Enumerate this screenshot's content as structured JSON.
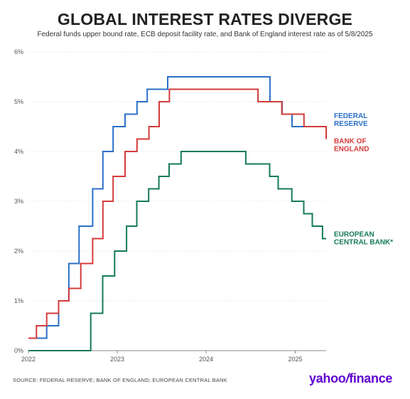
{
  "header": {
    "title": "GLOBAL INTEREST RATES DIVERGE",
    "subtitle": "Federal funds upper bound rate, ECB deposit facility rate, and Bank of England interest rate as of 5/8/2025"
  },
  "footer": {
    "source": "SOURCE: FEDERAL RESERVE; BANK OF ENGLAND; EUROPEAN CENTRAL BANK",
    "brand_part1": "yahoo",
    "brand_slash": "/",
    "brand_part2": "finance"
  },
  "colors": {
    "fed": "#2a6fc9",
    "boe": "#d43a3a",
    "ecb": "#147a5c",
    "grid": "#d9d9d9",
    "axis_text": "#555555",
    "brand": "#5f01d1"
  },
  "chart_data": {
    "type": "line",
    "step": true,
    "x_type": "date",
    "xlim": [
      "2022-01-01",
      "2025-05-08"
    ],
    "ylim": [
      0,
      6
    ],
    "y_ticks": [
      0,
      1,
      2,
      3,
      4,
      5,
      6
    ],
    "y_tick_labels": [
      "0%",
      "1%",
      "2%",
      "3%",
      "4%",
      "5%",
      "6%"
    ],
    "x_ticks": [
      "2022-01-01",
      "2023-01-01",
      "2024-01-01",
      "2025-01-01"
    ],
    "x_tick_labels": [
      "2022",
      "2023",
      "2024",
      "2025"
    ],
    "grid": true,
    "series": [
      {
        "name": "FEDERAL RESERVE",
        "label_lines": [
          "FEDERAL",
          "RESERVE"
        ],
        "color_key": "fed",
        "points": [
          [
            "2022-01-01",
            0.25
          ],
          [
            "2022-03-17",
            0.5
          ],
          [
            "2022-05-05",
            1.0
          ],
          [
            "2022-06-16",
            1.75
          ],
          [
            "2022-07-28",
            2.5
          ],
          [
            "2022-09-22",
            3.25
          ],
          [
            "2022-11-03",
            4.0
          ],
          [
            "2022-12-15",
            4.5
          ],
          [
            "2023-02-02",
            4.75
          ],
          [
            "2023-03-23",
            5.0
          ],
          [
            "2023-05-04",
            5.25
          ],
          [
            "2023-07-27",
            5.5
          ],
          [
            "2024-09-19",
            5.0
          ],
          [
            "2024-11-08",
            4.75
          ],
          [
            "2024-12-19",
            4.5
          ],
          [
            "2025-05-08",
            4.5
          ]
        ]
      },
      {
        "name": "BANK OF ENGLAND",
        "label_lines": [
          "BANK OF",
          "ENGLAND"
        ],
        "color_key": "boe",
        "points": [
          [
            "2022-01-01",
            0.25
          ],
          [
            "2022-02-03",
            0.5
          ],
          [
            "2022-03-17",
            0.75
          ],
          [
            "2022-05-05",
            1.0
          ],
          [
            "2022-06-16",
            1.25
          ],
          [
            "2022-08-04",
            1.75
          ],
          [
            "2022-09-22",
            2.25
          ],
          [
            "2022-11-03",
            3.0
          ],
          [
            "2022-12-15",
            3.5
          ],
          [
            "2023-02-02",
            4.0
          ],
          [
            "2023-03-23",
            4.25
          ],
          [
            "2023-05-11",
            4.5
          ],
          [
            "2023-06-22",
            5.0
          ],
          [
            "2023-08-03",
            5.25
          ],
          [
            "2024-08-01",
            5.0
          ],
          [
            "2024-11-07",
            4.75
          ],
          [
            "2025-02-06",
            4.5
          ],
          [
            "2025-05-08",
            4.25
          ]
        ]
      },
      {
        "name": "EUROPEAN CENTRAL BANK*",
        "label_lines": [
          "EUROPEAN",
          "CENTRAL BANK*"
        ],
        "color_key": "ecb",
        "points": [
          [
            "2022-01-01",
            0.0
          ],
          [
            "2022-09-14",
            0.75
          ],
          [
            "2022-11-02",
            1.5
          ],
          [
            "2022-12-21",
            2.0
          ],
          [
            "2023-02-08",
            2.5
          ],
          [
            "2023-03-22",
            3.0
          ],
          [
            "2023-05-10",
            3.25
          ],
          [
            "2023-06-21",
            3.5
          ],
          [
            "2023-08-02",
            3.75
          ],
          [
            "2023-09-20",
            4.0
          ],
          [
            "2024-06-12",
            3.75
          ],
          [
            "2024-09-18",
            3.5
          ],
          [
            "2024-10-23",
            3.25
          ],
          [
            "2024-12-18",
            3.0
          ],
          [
            "2025-02-05",
            2.75
          ],
          [
            "2025-03-12",
            2.5
          ],
          [
            "2025-04-23",
            2.25
          ],
          [
            "2025-05-08",
            2.25
          ]
        ]
      }
    ]
  }
}
